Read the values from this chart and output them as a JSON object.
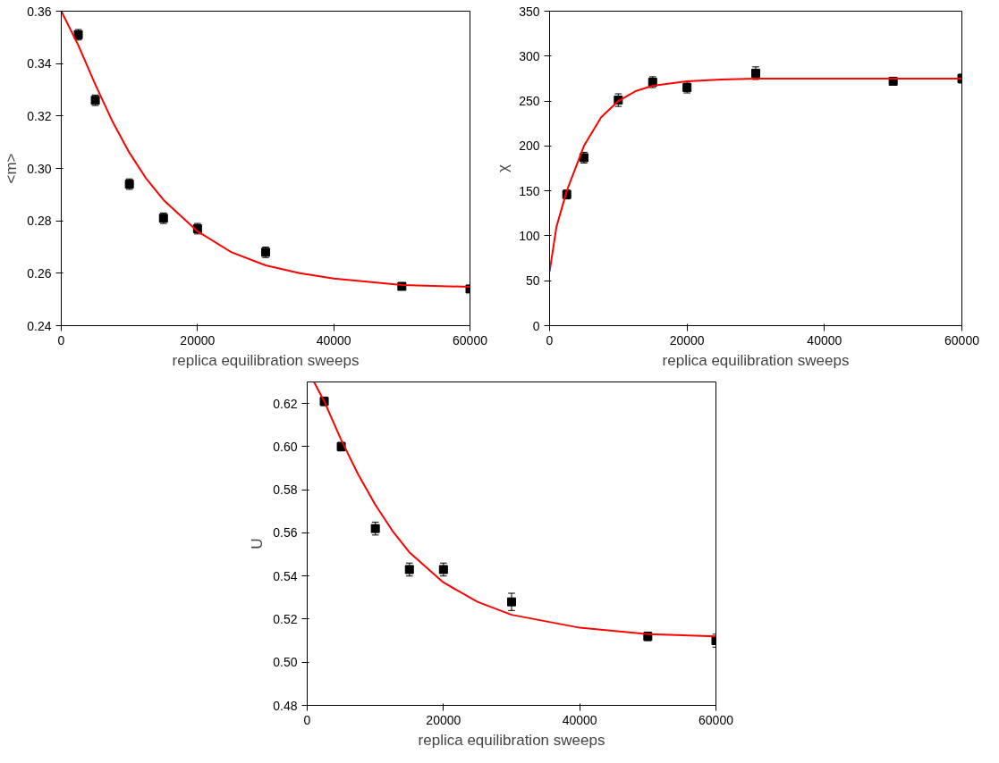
{
  "chart_data": [
    {
      "type": "scatter",
      "xlabel": "replica equilibration sweeps",
      "ylabel": "<m>",
      "xlim": [
        0,
        60000
      ],
      "ylim": [
        0.24,
        0.36
      ],
      "xticks": [
        0,
        20000,
        40000,
        60000
      ],
      "yticks": [
        0.24,
        0.26,
        0.28,
        {
          "value": 0.3,
          "label": "0.30"
        },
        0.32,
        0.34,
        {
          "value": 0.36,
          "label": "0.36"
        }
      ],
      "grid": false,
      "marker": "square",
      "series": [
        {
          "color": "#000000",
          "x": [
            2500,
            5000,
            10000,
            15000,
            20000,
            30000,
            50000,
            60000
          ],
          "values": [
            0.351,
            0.326,
            0.294,
            0.281,
            0.277,
            0.268,
            0.255,
            0.254
          ],
          "errors": [
            0.002,
            0.002,
            0.002,
            0.002,
            0.002,
            0.002,
            0.001,
            0.001
          ]
        },
        {
          "type": "line",
          "color": "#ff0000",
          "marker": "none",
          "x": [
            0,
            2500,
            5000,
            7500,
            10000,
            12500,
            15000,
            20000,
            25000,
            30000,
            35000,
            40000,
            50000,
            60000
          ],
          "values": [
            0.36,
            0.347,
            0.332,
            0.318,
            0.306,
            0.296,
            0.288,
            0.276,
            0.268,
            0.263,
            0.26,
            0.258,
            0.2555,
            0.2548
          ]
        }
      ]
    },
    {
      "type": "scatter",
      "xlabel": "replica equilibration sweeps",
      "ylabel": "χ",
      "xlim": [
        0,
        60000
      ],
      "ylim": [
        0,
        350
      ],
      "xticks": [
        0,
        20000,
        40000,
        60000
      ],
      "yticks": [
        0,
        50,
        100,
        150,
        200,
        250,
        300,
        350
      ],
      "grid": false,
      "marker": "square",
      "series": [
        {
          "color": "#000000",
          "x": [
            2500,
            5000,
            10000,
            15000,
            20000,
            30000,
            50000,
            60000
          ],
          "values": [
            146,
            187,
            251,
            271,
            265,
            281,
            272,
            275
          ],
          "errors": [
            5,
            6,
            7,
            6,
            6,
            7,
            4,
            5
          ]
        },
        {
          "type": "line",
          "color": "#ff0000",
          "marker": "none",
          "x": [
            0,
            1000,
            2500,
            5000,
            7500,
            10000,
            12500,
            15000,
            20000,
            25000,
            30000,
            40000,
            60000
          ],
          "values": [
            60,
            110,
            150,
            200,
            232,
            250,
            261,
            267,
            272,
            274,
            275,
            275,
            275
          ]
        }
      ]
    },
    {
      "type": "scatter",
      "xlabel": "replica equilibration sweeps",
      "ylabel": "U",
      "xlim": [
        0,
        60000
      ],
      "ylim": [
        0.48,
        0.63
      ],
      "xticks": [
        0,
        20000,
        40000,
        60000
      ],
      "yticks": [
        0.48,
        {
          "value": 0.5,
          "label": "0.50"
        },
        0.52,
        0.54,
        0.56,
        0.58,
        {
          "value": 0.6,
          "label": "0.60"
        },
        0.62
      ],
      "grid": false,
      "marker": "square",
      "series": [
        {
          "color": "#000000",
          "x": [
            2500,
            5000,
            10000,
            15000,
            20000,
            30000,
            50000,
            60000
          ],
          "values": [
            0.621,
            0.6,
            0.562,
            0.543,
            0.543,
            0.528,
            0.512,
            0.51
          ],
          "errors": [
            0.002,
            0.002,
            0.003,
            0.003,
            0.003,
            0.004,
            0.002,
            0.003
          ]
        },
        {
          "type": "line",
          "color": "#ff0000",
          "marker": "none",
          "x": [
            1000,
            2500,
            5000,
            7500,
            10000,
            12500,
            15000,
            20000,
            25000,
            30000,
            40000,
            50000,
            60000
          ],
          "values": [
            0.63,
            0.621,
            0.603,
            0.587,
            0.573,
            0.561,
            0.551,
            0.537,
            0.528,
            0.522,
            0.516,
            0.513,
            0.512
          ]
        }
      ]
    }
  ]
}
